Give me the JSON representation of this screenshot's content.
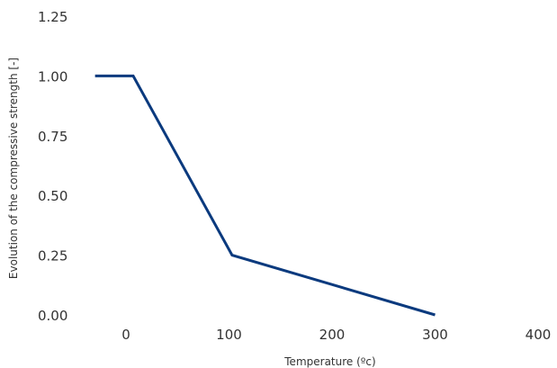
{
  "chart_data": {
    "type": "line",
    "title": "",
    "xlabel": "Temperature (ºc)",
    "ylabel": "Evolution of the compressive strength [-]",
    "xlim": [
      -40,
      400
    ],
    "ylim": [
      0,
      1.25
    ],
    "x_ticks": [
      {
        "value": 0,
        "label": "0"
      },
      {
        "value": 100,
        "label": "100"
      },
      {
        "value": 200,
        "label": "200"
      },
      {
        "value": 300,
        "label": "300"
      },
      {
        "value": 400,
        "label": "400"
      }
    ],
    "y_ticks": [
      {
        "value": 0,
        "label": "0.00"
      },
      {
        "value": 0.25,
        "label": "0.25"
      },
      {
        "value": 0.5,
        "label": "0.50"
      },
      {
        "value": 0.75,
        "label": "0.75"
      },
      {
        "value": 1.0,
        "label": "1.00"
      },
      {
        "value": 1.25,
        "label": "1.25"
      }
    ],
    "grid": false,
    "legend": "none",
    "series": [
      {
        "color": "#0b3a7e",
        "points": [
          {
            "x": -30,
            "y": 1.0
          },
          {
            "x": 7,
            "y": 1.0
          },
          {
            "x": 103,
            "y": 0.25
          },
          {
            "x": 300,
            "y": 0.0
          }
        ]
      }
    ]
  }
}
